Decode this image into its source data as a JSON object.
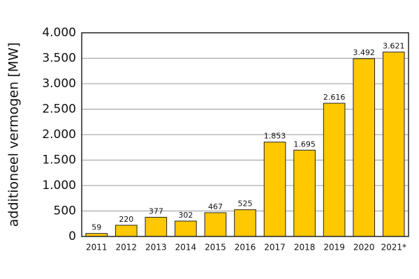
{
  "chart_data": {
    "type": "bar",
    "y_label": "additioneel vermogen [MW]",
    "categories": [
      "2011",
      "2012",
      "2013",
      "2014",
      "2015",
      "2016",
      "2017",
      "2018",
      "2019",
      "2020",
      "2021*"
    ],
    "values": [
      59,
      220,
      377,
      302,
      467,
      525,
      1853,
      1695,
      2616,
      3492,
      3621
    ],
    "value_labels": [
      "59",
      "220",
      "377",
      "302",
      "467",
      "525",
      "1.853",
      "1.695",
      "2.616",
      "3.492",
      "3.621"
    ],
    "color": "#ffc800",
    "ylim": [
      0,
      4000
    ],
    "yticks": [
      0,
      500,
      {
        "value": 1000,
        "label": "1.000"
      },
      {
        "value": 1500,
        "label": "1.500"
      },
      {
        "value": 2000,
        "label": "2.000"
      },
      {
        "value": 2500,
        "label": "2.500"
      },
      {
        "value": 3000,
        "label": "3.000"
      },
      {
        "value": 3500,
        "label": "3.500"
      },
      {
        "value": 4000,
        "label": "4.000"
      }
    ],
    "grid": true
  }
}
